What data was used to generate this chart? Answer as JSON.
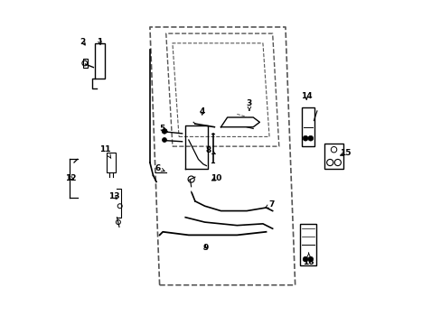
{
  "background_color": "#ffffff",
  "line_color": "#000000",
  "dashed_color": "#555555",
  "fig_width": 4.89,
  "fig_height": 3.6,
  "dpi": 100
}
